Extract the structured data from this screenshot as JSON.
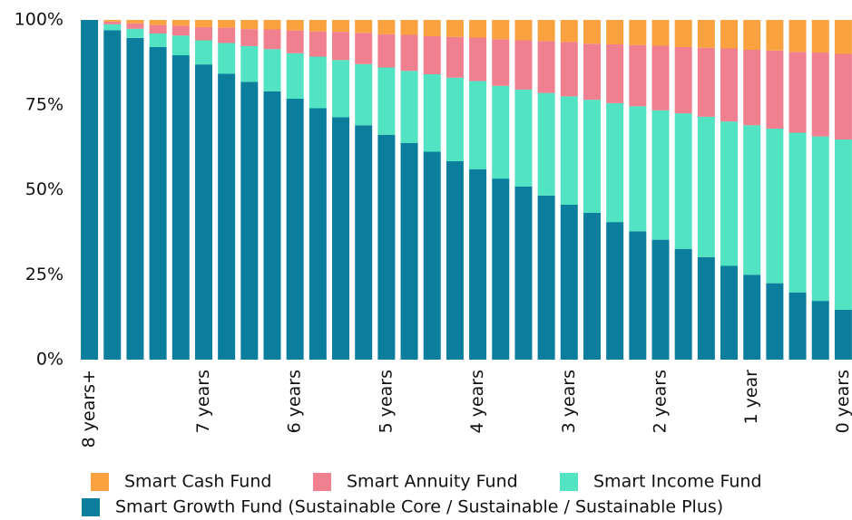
{
  "chart_data": {
    "type": "stacked_bar",
    "categories": [
      "8 years+",
      null,
      null,
      null,
      null,
      "7 years",
      null,
      null,
      null,
      "6 years",
      null,
      null,
      null,
      "5 years",
      null,
      null,
      null,
      "4 years",
      null,
      null,
      null,
      "3 years",
      null,
      null,
      null,
      "2 years",
      null,
      null,
      null,
      "1 year",
      null,
      null,
      null,
      "0 years"
    ],
    "series": [
      {
        "name": "Smart Growth Fund (Sustainable Core / Sustainable / Sustainable Plus)",
        "color": "#0a7e9c",
        "values": [
          100,
          97,
          94.7,
          92,
          89.6,
          86.9,
          84.2,
          81.8,
          79,
          76.8,
          74,
          71.4,
          69,
          66.2,
          63.8,
          61.2,
          58.4,
          56,
          53.3,
          51,
          48.3,
          45.6,
          43.2,
          40.5,
          37.8,
          35.3,
          32.6,
          30.2,
          27.6,
          25,
          22.5,
          19.8,
          17.3,
          14.7
        ]
      },
      {
        "name": "Smart Income Fund",
        "color": "#52e3c2",
        "values": [
          0,
          1.7,
          2.7,
          4,
          5.8,
          7.1,
          9,
          10.5,
          12.4,
          13.4,
          15.2,
          16.8,
          18,
          19.8,
          21.2,
          22.8,
          24.6,
          26,
          27.3,
          28.5,
          30.2,
          31.9,
          33.3,
          35,
          36.8,
          38.1,
          39.9,
          41.3,
          42.5,
          44,
          45.5,
          47,
          48.4,
          50.1
        ]
      },
      {
        "name": "Smart Annuity Fund",
        "color": "#f07f90",
        "values": [
          0,
          0.8,
          1.6,
          2.5,
          2.9,
          3.9,
          4.5,
          5,
          5.8,
          6.7,
          7.4,
          8.3,
          9.2,
          9.8,
          10.6,
          11.2,
          12,
          12.8,
          13.7,
          14.5,
          15.3,
          16,
          16.5,
          17.3,
          18,
          19,
          19.5,
          20.3,
          21.5,
          22.2,
          23,
          23.8,
          24.7,
          25.2
        ]
      },
      {
        "name": "Smart Cash Fund",
        "color": "#f9a23f",
        "values": [
          0,
          0.5,
          1,
          1.5,
          1.7,
          2.1,
          2.3,
          2.7,
          2.8,
          3.1,
          3.4,
          3.5,
          3.8,
          4.2,
          4.4,
          4.8,
          5,
          5.2,
          5.7,
          6,
          6.2,
          6.5,
          7,
          7.2,
          7.4,
          7.6,
          8,
          8.2,
          8.4,
          8.8,
          9,
          9.4,
          9.6,
          10
        ]
      }
    ],
    "ylim": [
      0,
      100
    ],
    "yticks": [
      {
        "value": 0,
        "label": "0%"
      },
      {
        "value": 25,
        "label": "25%"
      },
      {
        "value": 50,
        "label": "50%"
      },
      {
        "value": 75,
        "label": "75%"
      },
      {
        "value": 100,
        "label": "100%"
      }
    ],
    "grid": false
  }
}
